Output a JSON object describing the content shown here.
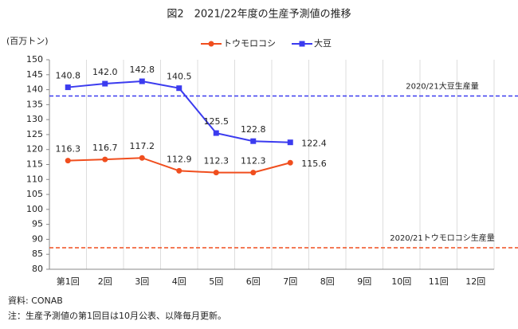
{
  "chart_data": {
    "type": "line",
    "title": "図2　2021/22年度の生産予測値の推移",
    "y_label": "(百万トン)",
    "categories": [
      "第1回",
      "2回",
      "3回",
      "4回",
      "5回",
      "6回",
      "7回",
      "8回",
      "9回",
      "10回",
      "11回",
      "12回"
    ],
    "series": [
      {
        "name": "トウモロコシ",
        "color": "#f04e1e",
        "marker": "circle",
        "values": [
          116.3,
          116.7,
          117.2,
          112.9,
          112.3,
          112.3,
          115.6,
          null,
          null,
          null,
          null,
          null
        ]
      },
      {
        "name": "大豆",
        "color": "#3b3bef",
        "marker": "square",
        "values": [
          140.8,
          142.0,
          142.8,
          140.5,
          125.5,
          122.8,
          122.4,
          null,
          null,
          null,
          null,
          null
        ],
        "value_labels": [
          "140.8",
          "142.0",
          "142.8",
          "140.5",
          "125.5",
          "122.8",
          "122.4",
          null,
          null,
          null,
          null,
          null
        ]
      }
    ],
    "reference_lines": [
      {
        "label": "2020/21大豆生産量",
        "value": 137.9,
        "color": "#3b3bef"
      },
      {
        "label": "2020/21トウモロコシ生産量",
        "value": 87.2,
        "color": "#f04e1e"
      }
    ],
    "ylim": [
      80,
      150
    ],
    "yticks": [
      80,
      85,
      90,
      95,
      100,
      105,
      110,
      115,
      120,
      125,
      130,
      135,
      140,
      145,
      150
    ],
    "legend": "top",
    "notes": [
      "資料: CONAB",
      "注：生産予測値の第1回目は10月公表、以降毎月更新。"
    ]
  }
}
